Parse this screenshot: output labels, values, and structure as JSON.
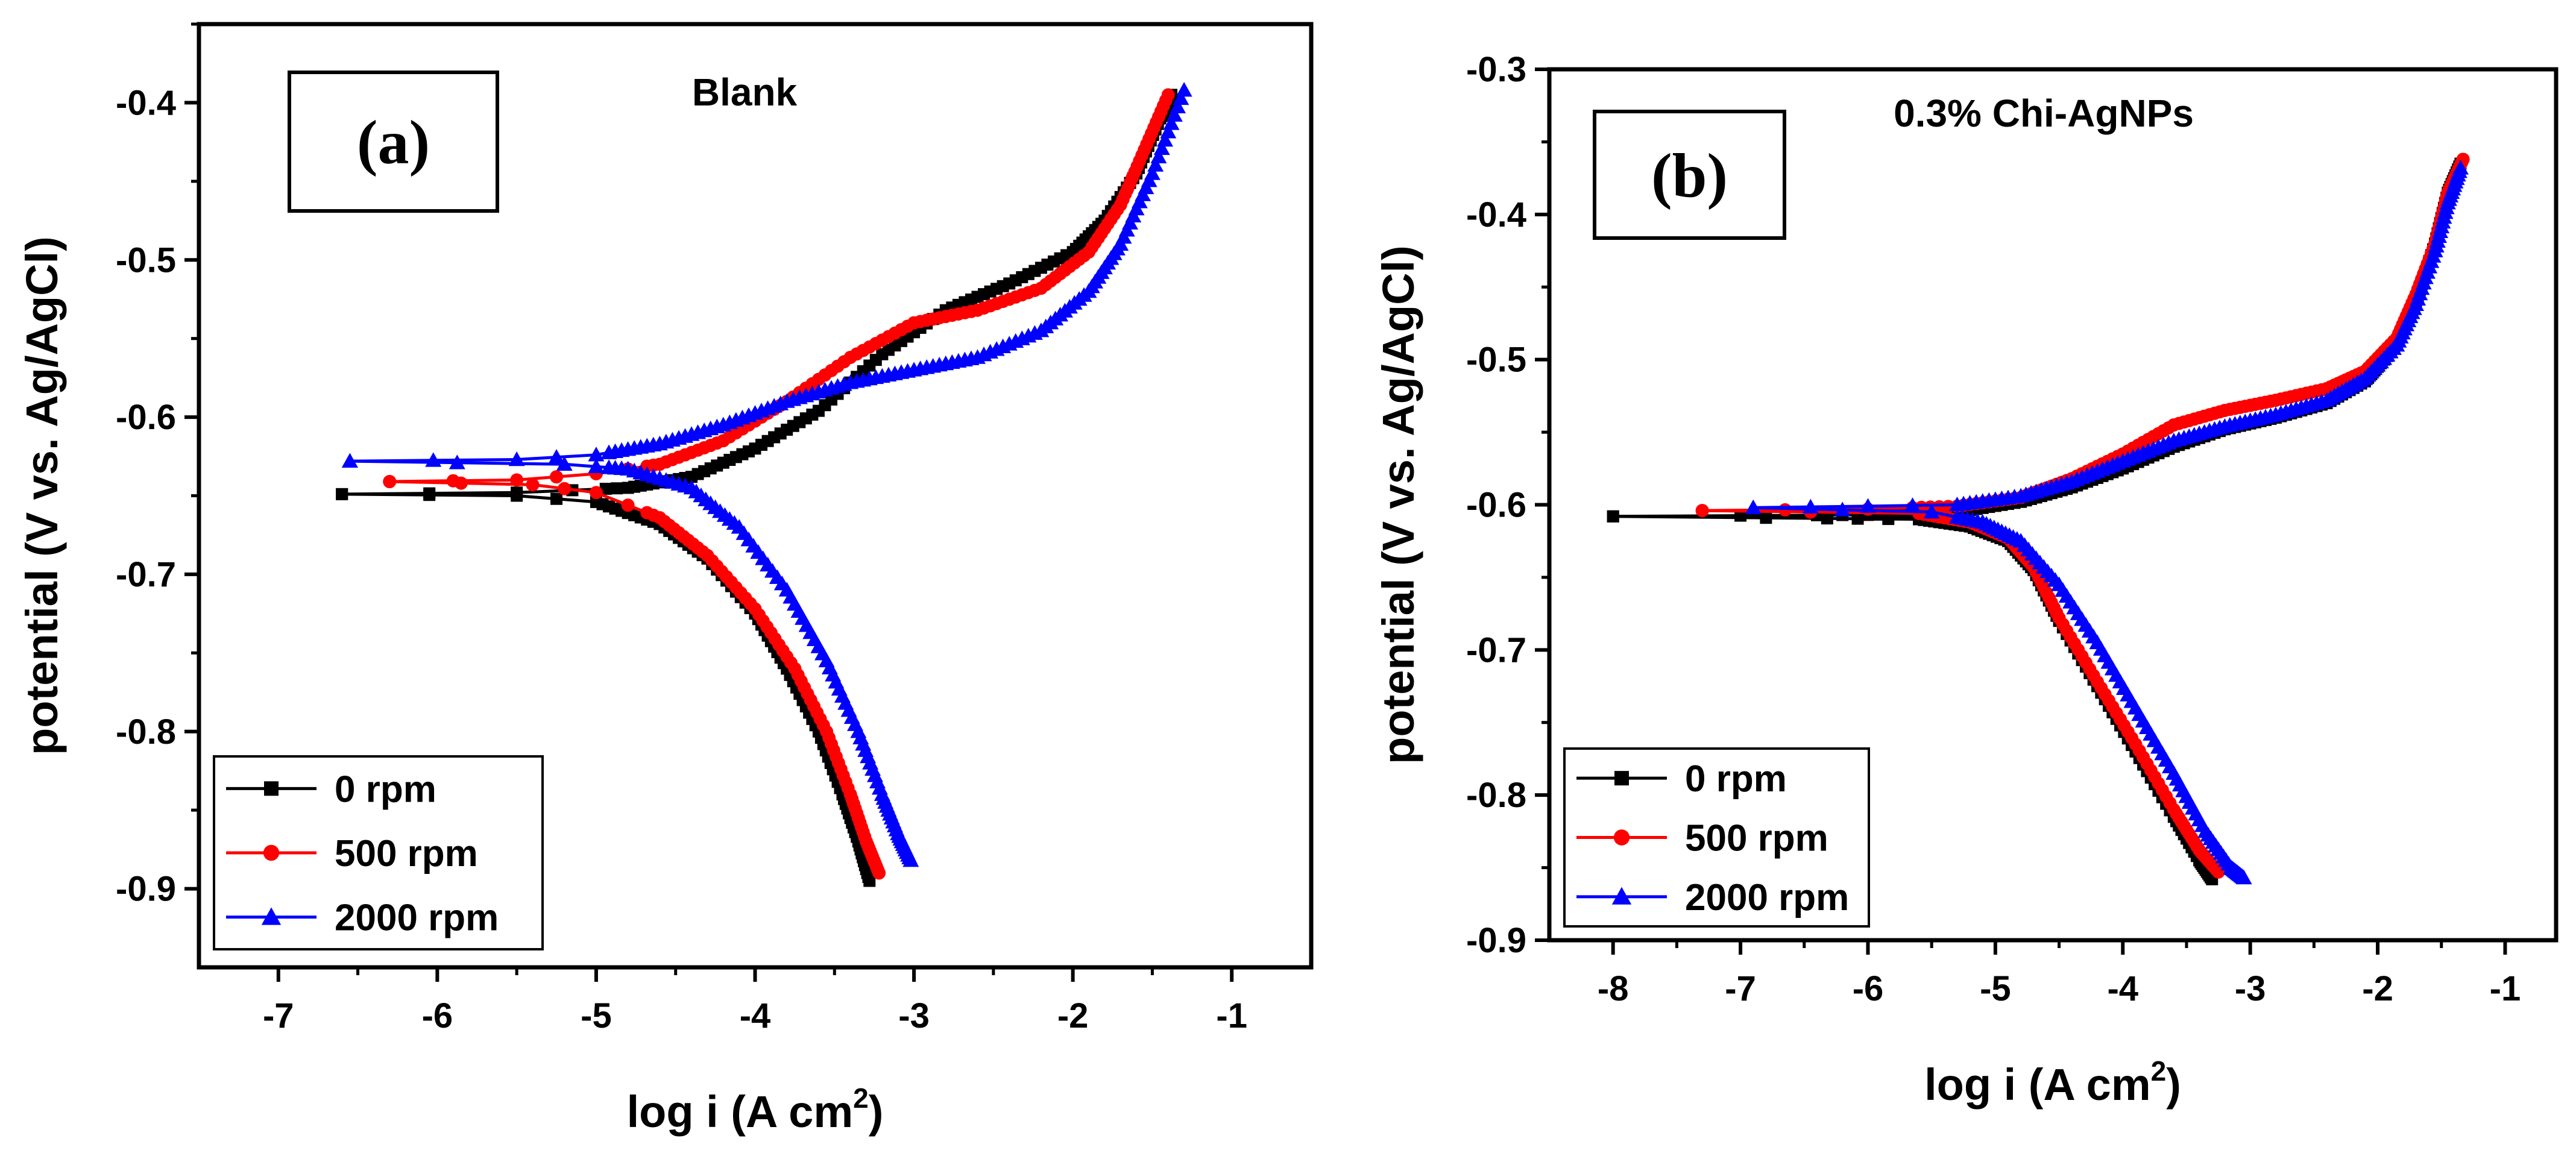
{
  "chart_data": [
    {
      "type": "line",
      "panel_label": "(a)",
      "title": "Blank",
      "xlabel_main": "log i (A cm",
      "xlabel_sup": "2",
      "xlabel_end": ")",
      "ylabel": "potential (V vs. Ag/AgCl)",
      "xlim": [
        -7.5,
        -0.5
      ],
      "ylim": [
        -0.95,
        -0.35
      ],
      "xticks": [
        -7,
        -6,
        -5,
        -4,
        -3,
        -2,
        -1
      ],
      "yticks": [
        -0.9,
        -0.8,
        -0.7,
        -0.6,
        -0.5,
        -0.4
      ],
      "grid": false,
      "legend_position": "bottom-left",
      "legend": [
        "0 rpm",
        "500 rpm",
        "2000 rpm"
      ],
      "series": [
        {
          "name": "0 rpm",
          "color": "#000000",
          "marker": "square",
          "anodic": [
            [
              -6.6,
              -0.649
            ],
            [
              -5.5,
              -0.648
            ],
            [
              -4.8,
              -0.645
            ],
            [
              -4.4,
              -0.638
            ],
            [
              -4.0,
              -0.62
            ],
            [
              -3.6,
              -0.596
            ],
            [
              -3.2,
              -0.56
            ],
            [
              -2.8,
              -0.532
            ],
            [
              -2.4,
              -0.515
            ],
            [
              -2.0,
              -0.495
            ],
            [
              -1.8,
              -0.475
            ],
            [
              -1.6,
              -0.445
            ],
            [
              -1.45,
              -0.41
            ],
            [
              -1.38,
              -0.395
            ]
          ],
          "cathodic": [
            [
              -6.6,
              -0.649
            ],
            [
              -5.5,
              -0.65
            ],
            [
              -5.0,
              -0.654
            ],
            [
              -4.6,
              -0.668
            ],
            [
              -4.3,
              -0.69
            ],
            [
              -4.0,
              -0.725
            ],
            [
              -3.8,
              -0.76
            ],
            [
              -3.6,
              -0.8
            ],
            [
              -3.45,
              -0.84
            ],
            [
              -3.35,
              -0.87
            ],
            [
              -3.28,
              -0.895
            ]
          ]
        },
        {
          "name": "500 rpm",
          "color": "#ff0000",
          "marker": "circle",
          "anodic": [
            [
              -6.3,
              -0.641
            ],
            [
              -5.5,
              -0.64
            ],
            [
              -5.0,
              -0.636
            ],
            [
              -4.6,
              -0.63
            ],
            [
              -4.2,
              -0.615
            ],
            [
              -3.8,
              -0.59
            ],
            [
              -3.4,
              -0.562
            ],
            [
              -3.0,
              -0.54
            ],
            [
              -2.6,
              -0.532
            ],
            [
              -2.2,
              -0.518
            ],
            [
              -1.9,
              -0.495
            ],
            [
              -1.7,
              -0.465
            ],
            [
              -1.55,
              -0.43
            ],
            [
              -1.4,
              -0.395
            ]
          ],
          "cathodic": [
            [
              -6.3,
              -0.641
            ],
            [
              -5.4,
              -0.643
            ],
            [
              -5.0,
              -0.648
            ],
            [
              -4.6,
              -0.664
            ],
            [
              -4.3,
              -0.688
            ],
            [
              -4.0,
              -0.722
            ],
            [
              -3.75,
              -0.76
            ],
            [
              -3.55,
              -0.8
            ],
            [
              -3.4,
              -0.84
            ],
            [
              -3.3,
              -0.87
            ],
            [
              -3.22,
              -0.89
            ]
          ]
        },
        {
          "name": "2000 rpm",
          "color": "#0000ff",
          "marker": "triangle",
          "anodic": [
            [
              -6.55,
              -0.628
            ],
            [
              -5.5,
              -0.627
            ],
            [
              -5.0,
              -0.624
            ],
            [
              -4.6,
              -0.617
            ],
            [
              -4.2,
              -0.605
            ],
            [
              -3.8,
              -0.59
            ],
            [
              -3.4,
              -0.578
            ],
            [
              -3.0,
              -0.57
            ],
            [
              -2.6,
              -0.562
            ],
            [
              -2.2,
              -0.545
            ],
            [
              -1.9,
              -0.52
            ],
            [
              -1.7,
              -0.49
            ],
            [
              -1.5,
              -0.445
            ],
            [
              -1.3,
              -0.392
            ]
          ],
          "cathodic": [
            [
              -6.55,
              -0.628
            ],
            [
              -5.2,
              -0.63
            ],
            [
              -4.8,
              -0.633
            ],
            [
              -4.4,
              -0.645
            ],
            [
              -4.1,
              -0.67
            ],
            [
              -3.8,
              -0.71
            ],
            [
              -3.55,
              -0.755
            ],
            [
              -3.35,
              -0.8
            ],
            [
              -3.2,
              -0.84
            ],
            [
              -3.1,
              -0.865
            ],
            [
              -3.02,
              -0.882
            ]
          ]
        }
      ]
    },
    {
      "type": "line",
      "panel_label": "(b)",
      "title": "0.3% Chi-AgNPs",
      "xlabel_main": "log i (A cm",
      "xlabel_sup": "2",
      "xlabel_end": ")",
      "ylabel": "potential (V vs. Ag/AgCl)",
      "xlim": [
        -8.5,
        -0.6
      ],
      "ylim": [
        -0.9,
        -0.3
      ],
      "xticks": [
        -8,
        -7,
        -6,
        -5,
        -4,
        -3,
        -2,
        -1
      ],
      "yticks": [
        -0.9,
        -0.8,
        -0.7,
        -0.6,
        -0.5,
        -0.4,
        -0.3
      ],
      "grid": false,
      "legend_position": "bottom-left",
      "legend": [
        "0 rpm",
        "500 rpm",
        "2000 rpm"
      ],
      "series": [
        {
          "name": "0 rpm",
          "color": "#000000",
          "marker": "square",
          "anodic": [
            [
              -8.0,
              -0.608
            ],
            [
              -6.0,
              -0.607
            ],
            [
              -5.3,
              -0.605
            ],
            [
              -4.8,
              -0.598
            ],
            [
              -4.4,
              -0.588
            ],
            [
              -4.0,
              -0.575
            ],
            [
              -3.6,
              -0.56
            ],
            [
              -3.2,
              -0.548
            ],
            [
              -2.8,
              -0.54
            ],
            [
              -2.4,
              -0.53
            ],
            [
              -2.1,
              -0.515
            ],
            [
              -1.85,
              -0.49
            ],
            [
              -1.7,
              -0.46
            ],
            [
              -1.55,
              -0.42
            ],
            [
              -1.45,
              -0.385
            ],
            [
              -1.35,
              -0.365
            ]
          ],
          "cathodic": [
            [
              -8.0,
              -0.608
            ],
            [
              -5.6,
              -0.61
            ],
            [
              -5.2,
              -0.615
            ],
            [
              -4.9,
              -0.625
            ],
            [
              -4.7,
              -0.645
            ],
            [
              -4.5,
              -0.68
            ],
            [
              -4.2,
              -0.725
            ],
            [
              -3.9,
              -0.77
            ],
            [
              -3.6,
              -0.815
            ],
            [
              -3.4,
              -0.845
            ],
            [
              -3.3,
              -0.858
            ]
          ]
        },
        {
          "name": "500 rpm",
          "color": "#ff0000",
          "marker": "circle",
          "anodic": [
            [
              -7.3,
              -0.604
            ],
            [
              -6.0,
              -0.603
            ],
            [
              -5.3,
              -0.601
            ],
            [
              -4.8,
              -0.595
            ],
            [
              -4.4,
              -0.582
            ],
            [
              -4.0,
              -0.565
            ],
            [
              -3.6,
              -0.545
            ],
            [
              -3.2,
              -0.535
            ],
            [
              -2.8,
              -0.528
            ],
            [
              -2.4,
              -0.52
            ],
            [
              -2.1,
              -0.508
            ],
            [
              -1.85,
              -0.485
            ],
            [
              -1.7,
              -0.455
            ],
            [
              -1.55,
              -0.42
            ],
            [
              -1.45,
              -0.385
            ],
            [
              -1.33,
              -0.362
            ]
          ],
          "cathodic": [
            [
              -7.3,
              -0.604
            ],
            [
              -5.6,
              -0.606
            ],
            [
              -5.2,
              -0.612
            ],
            [
              -4.9,
              -0.623
            ],
            [
              -4.7,
              -0.643
            ],
            [
              -4.5,
              -0.678
            ],
            [
              -4.2,
              -0.722
            ],
            [
              -3.9,
              -0.765
            ],
            [
              -3.6,
              -0.81
            ],
            [
              -3.4,
              -0.838
            ],
            [
              -3.25,
              -0.853
            ]
          ]
        },
        {
          "name": "2000 rpm",
          "color": "#0000ff",
          "marker": "triangle",
          "anodic": [
            [
              -6.9,
              -0.602
            ],
            [
              -6.0,
              -0.601
            ],
            [
              -5.3,
              -0.6
            ],
            [
              -4.8,
              -0.594
            ],
            [
              -4.4,
              -0.584
            ],
            [
              -4.0,
              -0.57
            ],
            [
              -3.6,
              -0.556
            ],
            [
              -3.2,
              -0.546
            ],
            [
              -2.8,
              -0.538
            ],
            [
              -2.4,
              -0.528
            ],
            [
              -2.1,
              -0.513
            ],
            [
              -1.85,
              -0.49
            ],
            [
              -1.7,
              -0.462
            ],
            [
              -1.55,
              -0.425
            ],
            [
              -1.45,
              -0.392
            ],
            [
              -1.35,
              -0.368
            ]
          ],
          "cathodic": [
            [
              -6.9,
              -0.602
            ],
            [
              -5.5,
              -0.605
            ],
            [
              -5.1,
              -0.612
            ],
            [
              -4.8,
              -0.625
            ],
            [
              -4.5,
              -0.655
            ],
            [
              -4.2,
              -0.695
            ],
            [
              -3.9,
              -0.74
            ],
            [
              -3.6,
              -0.785
            ],
            [
              -3.35,
              -0.825
            ],
            [
              -3.15,
              -0.85
            ],
            [
              -3.05,
              -0.857
            ]
          ]
        }
      ]
    }
  ]
}
